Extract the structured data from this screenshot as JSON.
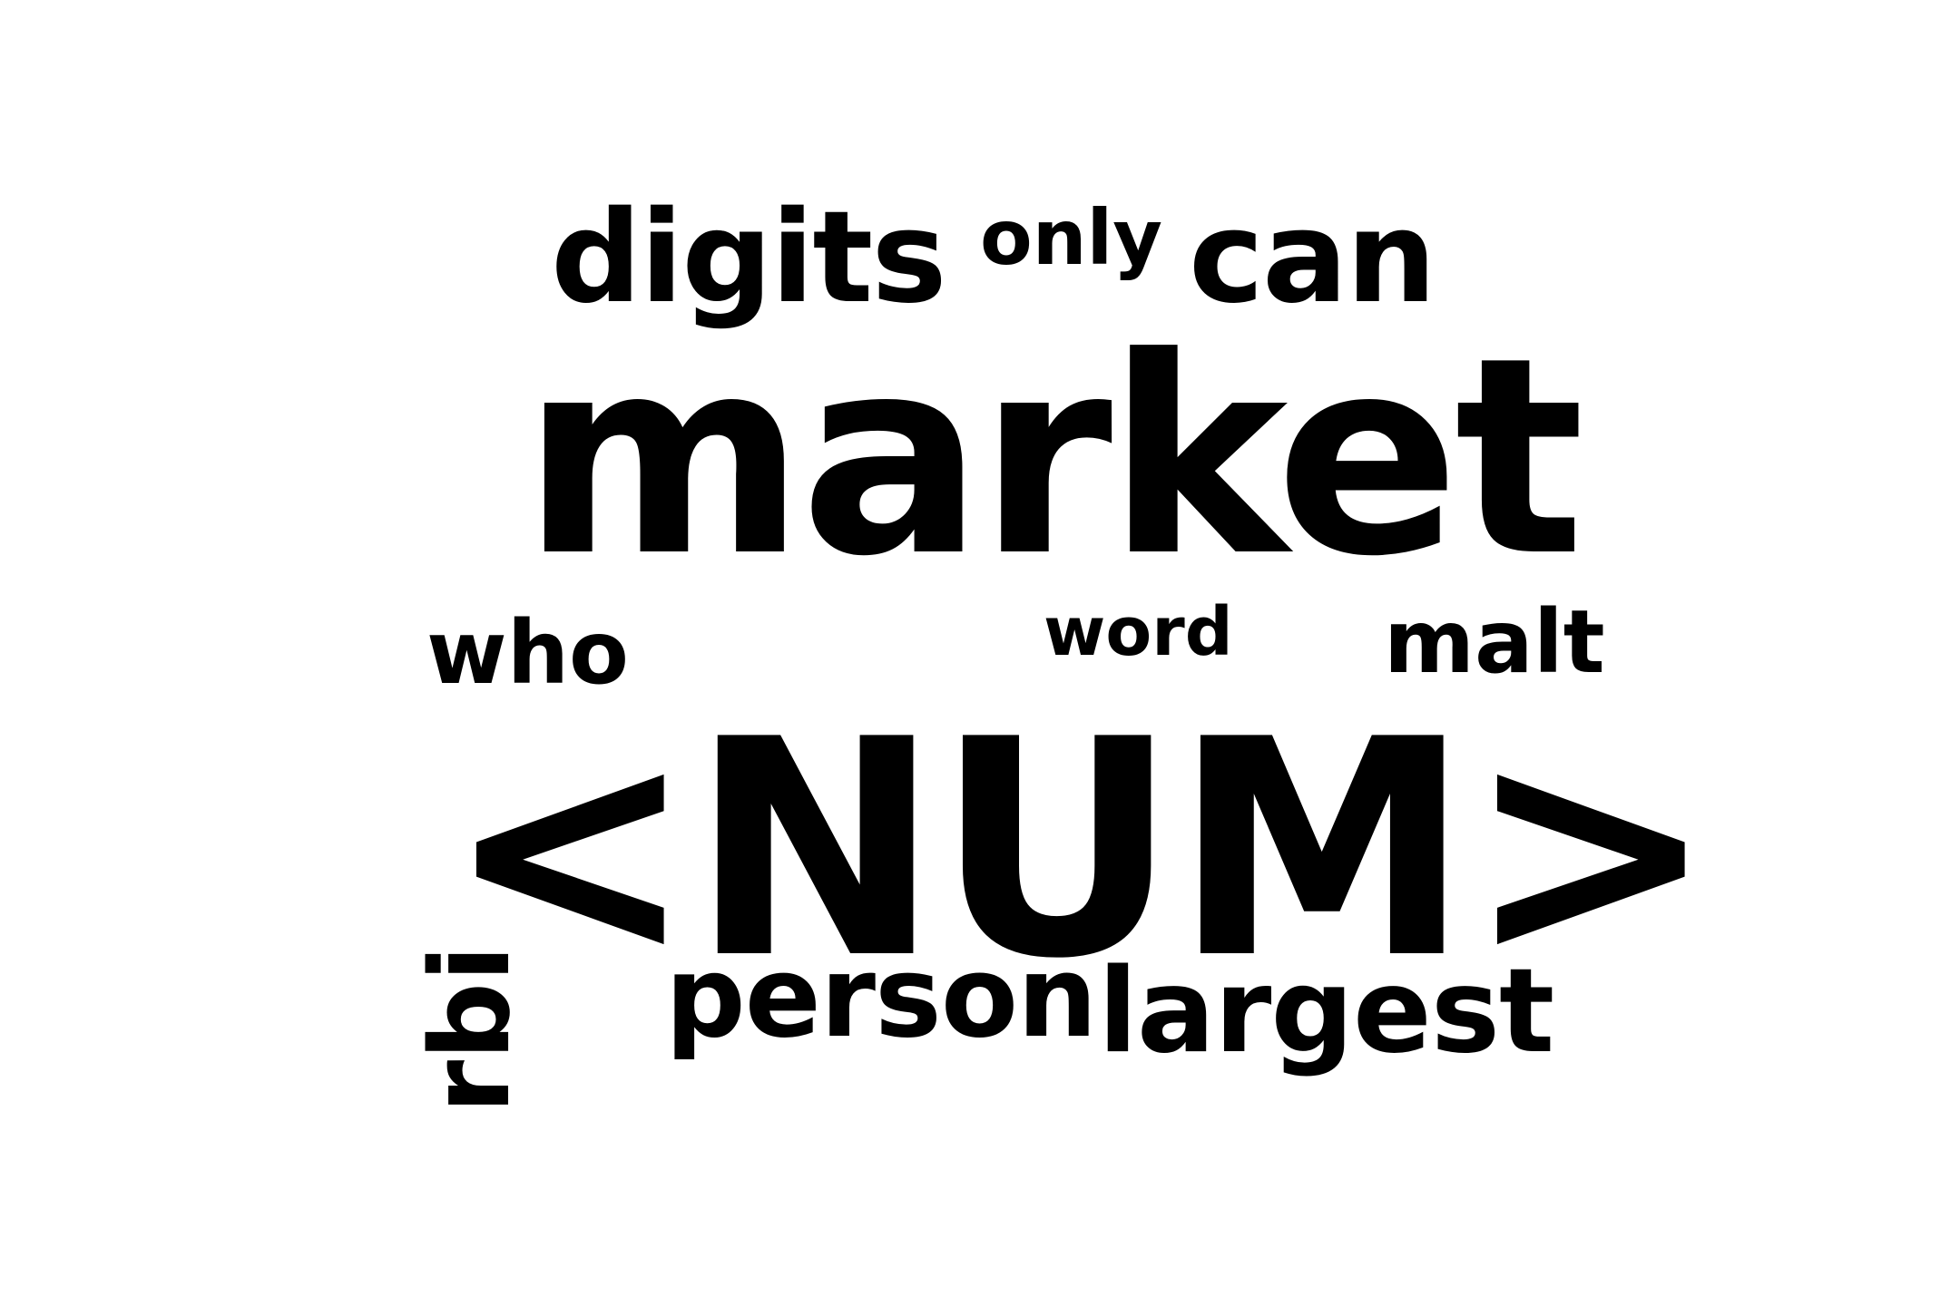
{
  "wordcloud": {
    "words": {
      "num": "<NUM>",
      "market": "market",
      "digits": "digits",
      "only": "only",
      "can": "can",
      "who": "who",
      "word": "word",
      "malt": "malt",
      "person": "person",
      "largest": "largest",
      "rbi": "rbi"
    },
    "text_color": "#000000",
    "background_color": "#ffffff"
  }
}
